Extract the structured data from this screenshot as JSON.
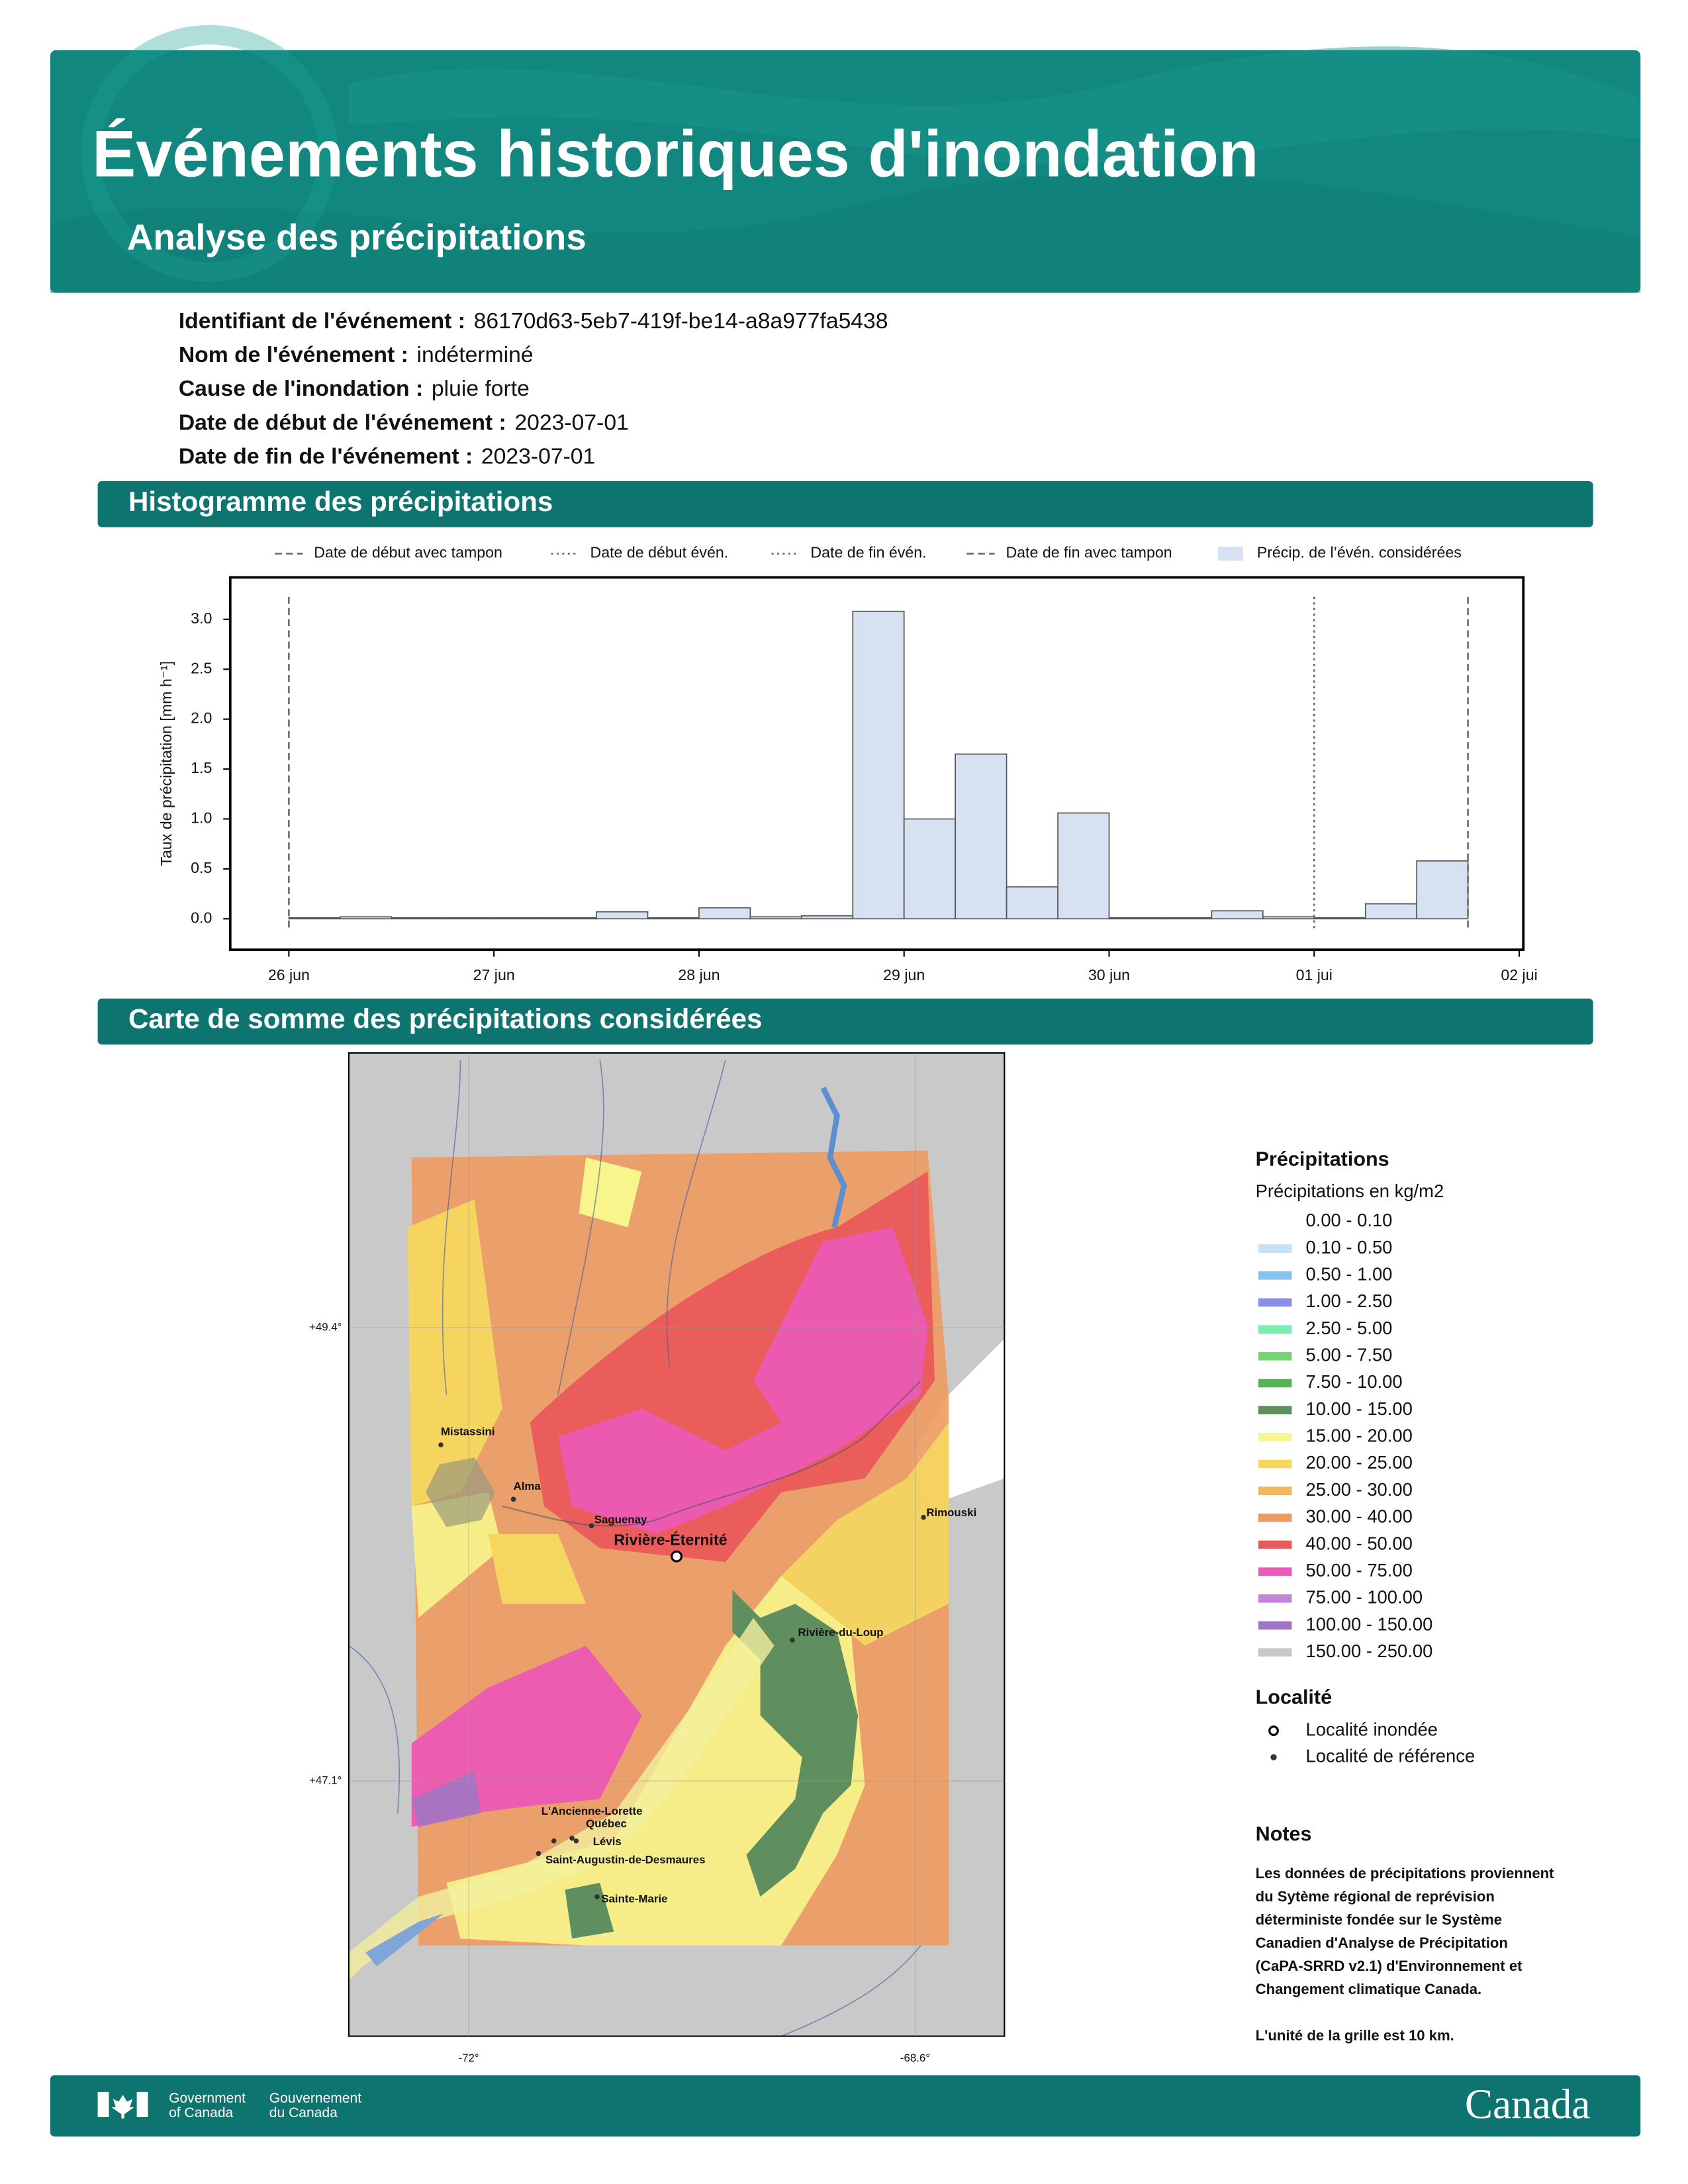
{
  "header": {
    "title": "Événements historiques d'inondation",
    "subtitle": "Analyse des précipitations"
  },
  "event_info": [
    {
      "label": "Identifiant de l'événement :",
      "value": "86170d63-5eb7-419f-be14-a8a977fa5438"
    },
    {
      "label": "Nom de l'événement :",
      "value": "indéterminé"
    },
    {
      "label": "Cause de l'inondation :",
      "value": "pluie forte"
    },
    {
      "label": "Date de début de l'événement :",
      "value": "2023-07-01"
    },
    {
      "label": "Date de fin de l'événement :",
      "value": "2023-07-01"
    }
  ],
  "sections": [
    "Histogramme des précipitations",
    "Carte de somme des précipitations considérées"
  ],
  "histogram": {
    "type": "histogram",
    "y_label": "Taux de précipitation [mm h⁻¹]",
    "bins": [
      0,
      0.25,
      0.5,
      0.75,
      1,
      1.25,
      1.5,
      1.75,
      2,
      2.25,
      2.5,
      2.75,
      3,
      3.25,
      3.5,
      3.75,
      4,
      4.25,
      4.5,
      4.75,
      5,
      5.25,
      5.5,
      5.75
    ],
    "values": [
      0.01,
      0.02,
      0.01,
      0.01,
      0.01,
      0.01,
      0.07,
      0.01,
      0.11,
      0.02,
      0.03,
      3.08,
      1.0,
      1.65,
      0.32,
      1.06,
      0.01,
      0.01,
      0.08,
      0.02,
      0.01,
      0.15,
      0.58
    ],
    "color": "#d6e1f1",
    "edge_color": "#555555",
    "xlim": [
      -0.286,
      6.02
    ],
    "xticks": [
      {
        "value": 0,
        "label": "26 jun"
      },
      {
        "value": 1,
        "label": "27 jun"
      },
      {
        "value": 2,
        "label": "28 jun"
      },
      {
        "value": 3,
        "label": "29 jun"
      },
      {
        "value": 4,
        "label": "30 jun"
      },
      {
        "value": 5,
        "label": "01 jui"
      },
      {
        "value": 6,
        "label": "02 jui"
      }
    ],
    "ylim": [
      -0.31,
      3.42
    ],
    "yticks": [
      {
        "value": 0,
        "label": "0.0"
      },
      {
        "value": 0.5,
        "label": "0.5"
      },
      {
        "value": 1,
        "label": "1.0"
      },
      {
        "value": 1.5,
        "label": "1.5"
      },
      {
        "value": 2,
        "label": "2.0"
      },
      {
        "value": 2.5,
        "label": "2.5"
      },
      {
        "value": 3,
        "label": "3.0"
      }
    ],
    "legend": [
      {
        "name": "Date de début avec tampon",
        "style": "dashed",
        "x": 0
      },
      {
        "name": "Date de début évén.",
        "style": "dotted",
        "x": 5
      },
      {
        "name": "Date de fin évén.",
        "style": "dotted",
        "x": 5
      },
      {
        "name": "Date de fin avec tampon",
        "style": "dashed",
        "x": 5.75
      },
      {
        "name": "Précip. de l’évén. considérées",
        "style": "patch"
      }
    ]
  },
  "map": {
    "latitude_labels": [
      "+49.4°",
      "+47.1°"
    ],
    "longitude_labels": [
      "-72°",
      "-68.6°"
    ],
    "places": [
      {
        "name": "Mistassini",
        "kind": "reference"
      },
      {
        "name": "Alma",
        "kind": "reference"
      },
      {
        "name": "Saguenay",
        "kind": "reference"
      },
      {
        "name": "Rivière-Éternité",
        "kind": "flooded"
      },
      {
        "name": "Rimouski",
        "kind": "reference"
      },
      {
        "name": "Rivière-du-Loup",
        "kind": "reference"
      },
      {
        "name": "L'Ancienne-Lorette",
        "kind": "reference"
      },
      {
        "name": "Québec",
        "kind": "reference"
      },
      {
        "name": "Lévis",
        "kind": "reference"
      },
      {
        "name": "Saint-Augustin-de-Desmaures",
        "kind": "reference"
      },
      {
        "name": "Sainte-Marie",
        "kind": "reference"
      }
    ],
    "legend": {
      "title": "Précipitations",
      "subtitle": "Précipitations en kg/m2",
      "classes": [
        {
          "label": "0.00 - 0.10",
          "color": "#ffffff"
        },
        {
          "label": "0.10 - 0.50",
          "color": "#c6e0f5"
        },
        {
          "label": "0.50 - 1.00",
          "color": "#86c2ee"
        },
        {
          "label": "1.00 - 2.50",
          "color": "#8a8ee8"
        },
        {
          "label": "2.50 - 5.00",
          "color": "#7aedb0"
        },
        {
          "label": "5.00 - 7.50",
          "color": "#6fd86f"
        },
        {
          "label": "7.50 - 10.00",
          "color": "#52b452"
        },
        {
          "label": "10.00 - 15.00",
          "color": "#5f8f5f"
        },
        {
          "label": "15.00 - 20.00",
          "color": "#f8f58c"
        },
        {
          "label": "20.00 - 25.00",
          "color": "#f5d760"
        },
        {
          "label": "25.00 - 30.00",
          "color": "#f0b860"
        },
        {
          "label": "30.00 - 40.00",
          "color": "#ee9a60"
        },
        {
          "label": "40.00 - 50.00",
          "color": "#ea5a5a"
        },
        {
          "label": "50.00 - 75.00",
          "color": "#ec5ab5"
        },
        {
          "label": "75.00 - 100.00",
          "color": "#c484d8"
        },
        {
          "label": "100.00 - 150.00",
          "color": "#a275c4"
        },
        {
          "label": "150.00 - 250.00",
          "color": "#c8c8c8"
        }
      ]
    },
    "locality_legend": {
      "title": "Localité",
      "items": [
        "Localité inondée",
        "Localité de référence"
      ]
    }
  },
  "notes": {
    "title": "Notes",
    "lines": [
      "Les données de précipitations proviennent",
      "du Sytème régional de reprévision",
      "déterministe fondée sur le Système",
      "Canadien d'Analyse de Précipitation",
      "(CaPA-SRRD v2.1) d'Environnement et",
      "Changement climatique Canada.",
      "L'unité de la grille est 10 km."
    ]
  },
  "footer": {
    "government_en": [
      "Government",
      "of Canada"
    ],
    "government_fr": [
      "Gouvernement",
      "du Canada"
    ],
    "wordmark": "Canada"
  }
}
